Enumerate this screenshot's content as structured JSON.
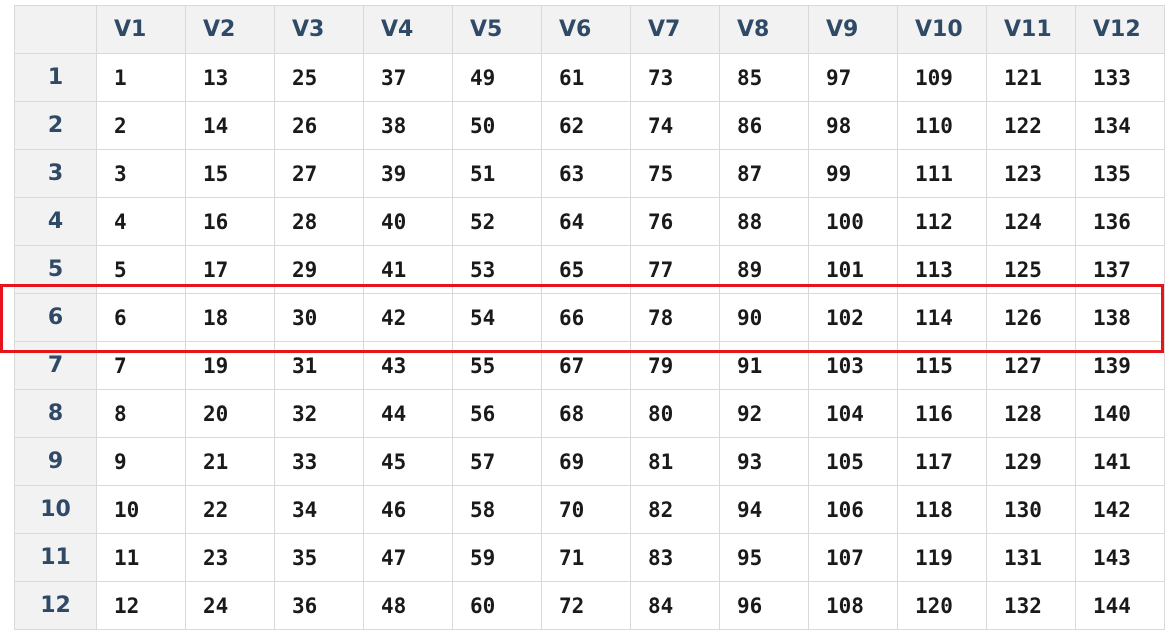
{
  "table": {
    "columns": [
      "V1",
      "V2",
      "V3",
      "V4",
      "V5",
      "V6",
      "V7",
      "V8",
      "V9",
      "V10",
      "V11",
      "V12"
    ],
    "rows": [
      {
        "label": "1",
        "cells": [
          "1",
          "13",
          "25",
          "37",
          "49",
          "61",
          "73",
          "85",
          "97",
          "109",
          "121",
          "133"
        ]
      },
      {
        "label": "2",
        "cells": [
          "2",
          "14",
          "26",
          "38",
          "50",
          "62",
          "74",
          "86",
          "98",
          "110",
          "122",
          "134"
        ]
      },
      {
        "label": "3",
        "cells": [
          "3",
          "15",
          "27",
          "39",
          "51",
          "63",
          "75",
          "87",
          "99",
          "111",
          "123",
          "135"
        ]
      },
      {
        "label": "4",
        "cells": [
          "4",
          "16",
          "28",
          "40",
          "52",
          "64",
          "76",
          "88",
          "100",
          "112",
          "124",
          "136"
        ]
      },
      {
        "label": "5",
        "cells": [
          "5",
          "17",
          "29",
          "41",
          "53",
          "65",
          "77",
          "89",
          "101",
          "113",
          "125",
          "137"
        ]
      },
      {
        "label": "6",
        "cells": [
          "6",
          "18",
          "30",
          "42",
          "54",
          "66",
          "78",
          "90",
          "102",
          "114",
          "126",
          "138"
        ]
      },
      {
        "label": "7",
        "cells": [
          "7",
          "19",
          "31",
          "43",
          "55",
          "67",
          "79",
          "91",
          "103",
          "115",
          "127",
          "139"
        ]
      },
      {
        "label": "8",
        "cells": [
          "8",
          "20",
          "32",
          "44",
          "56",
          "68",
          "80",
          "92",
          "104",
          "116",
          "128",
          "140"
        ]
      },
      {
        "label": "9",
        "cells": [
          "9",
          "21",
          "33",
          "45",
          "57",
          "69",
          "81",
          "93",
          "105",
          "117",
          "129",
          "141"
        ]
      },
      {
        "label": "10",
        "cells": [
          "10",
          "22",
          "34",
          "46",
          "58",
          "70",
          "82",
          "94",
          "106",
          "118",
          "130",
          "142"
        ]
      },
      {
        "label": "11",
        "cells": [
          "11",
          "23",
          "35",
          "47",
          "59",
          "71",
          "83",
          "95",
          "107",
          "119",
          "131",
          "143"
        ]
      },
      {
        "label": "12",
        "cells": [
          "12",
          "24",
          "36",
          "48",
          "60",
          "72",
          "84",
          "96",
          "108",
          "120",
          "132",
          "144"
        ]
      }
    ],
    "highlighted_row": "6",
    "highlight_color": "#e8141c"
  }
}
